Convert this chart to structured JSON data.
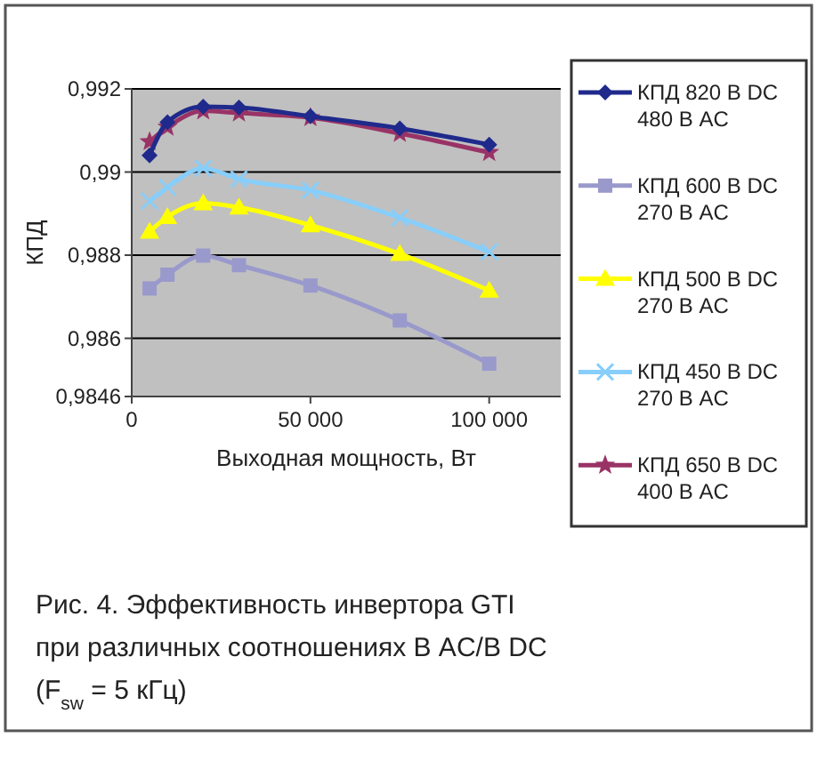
{
  "chart_data": {
    "type": "line",
    "ylabel": "КПД",
    "xlabel": "Выходная мощность, Вт",
    "x": [
      5000,
      10000,
      20000,
      30000,
      50000,
      75000,
      100000
    ],
    "xlim": [
      0,
      120000
    ],
    "xticks": [
      0,
      {
        "value": 50000,
        "label": "50 000"
      },
      {
        "value": 100000,
        "label": "100 000"
      }
    ],
    "ylim": [
      0.9846,
      0.992
    ],
    "yticks": [
      {
        "value": 0.9846,
        "label": "0,9846"
      },
      {
        "value": 0.986,
        "label": "0,986"
      },
      {
        "value": 0.988,
        "label": "0,988"
      },
      {
        "value": 0.99,
        "label": "0,99"
      },
      {
        "value": 0.992,
        "label": "0,992"
      }
    ],
    "grid": "y",
    "legend": "right",
    "series": [
      {
        "name": "КПД 820 В DC\n480 В AC",
        "color": "#1f2a8c",
        "marker": "diamond",
        "values": [
          0.9904,
          0.9912,
          0.99157,
          0.99155,
          0.99134,
          0.99105,
          0.99066
        ]
      },
      {
        "name": "КПД 600 В DC\n270 В AC",
        "color": "#9999cc",
        "marker": "square",
        "values": [
          0.9872,
          0.98753,
          0.98799,
          0.98776,
          0.98727,
          0.98643,
          0.98539
        ]
      },
      {
        "name": "КПД 500 В DC\n270 В AC",
        "color": "#ffff00",
        "marker": "triangle",
        "values": [
          0.98857,
          0.98892,
          0.98925,
          0.98915,
          0.98872,
          0.98803,
          0.98715
        ]
      },
      {
        "name": "КПД 450 В DC\n270 В AC",
        "color": "#87cefa",
        "marker": "cross",
        "values": [
          0.9893,
          0.98963,
          0.99009,
          0.98983,
          0.98956,
          0.9889,
          0.98808
        ]
      },
      {
        "name": "КПД 650 В DC\n400 В AC",
        "color": "#993366",
        "marker": "star",
        "values": [
          0.99073,
          0.99108,
          0.99147,
          0.99142,
          0.99131,
          0.99093,
          0.99047
        ]
      }
    ],
    "annotations": [
      "Рис. 4. Эффективность инвертора GTI при различных соотношениях В AC/В DC (F$_{sw}$ = 5 кГц)"
    ]
  }
}
